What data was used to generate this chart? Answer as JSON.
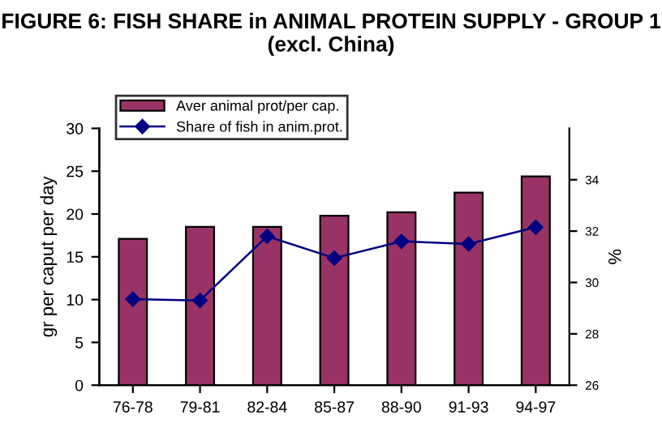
{
  "chart_data": {
    "type": "bar",
    "title": "FIGURE 6: FISH SHARE in ANIMAL PROTEIN SUPPLY - GROUP 1 (excl. China)",
    "categories": [
      "76-78",
      "79-81",
      "82-84",
      "85-87",
      "88-90",
      "91-93",
      "94-97"
    ],
    "series": [
      {
        "name": "Aver animal prot/per cap.",
        "color": "#993366",
        "values": [
          17.1,
          18.5,
          18.5,
          19.8,
          20.2,
          22.5,
          24.4
        ]
      },
      {
        "name": "Share of fish in anim.prot.",
        "color": "#000080",
        "type": "line",
        "axis": "y2",
        "marker": "diamond",
        "values": [
          29.35,
          29.3,
          31.8,
          30.95,
          31.6,
          31.5,
          32.15
        ]
      }
    ],
    "ylabel": "gr per caput per day",
    "y2label": "%",
    "ylim": [
      0,
      30
    ],
    "yticks": [
      0,
      5,
      10,
      15,
      20,
      25,
      30
    ],
    "y2lim": [
      26,
      36
    ],
    "y2ticks": [
      26,
      28,
      30,
      32,
      34
    ],
    "legend": "top left",
    "grid": false
  }
}
